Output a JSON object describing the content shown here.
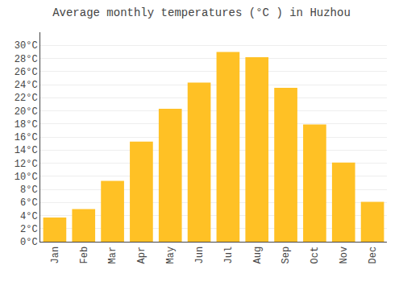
{
  "chart_data": {
    "type": "bar",
    "title": "Average monthly temperatures (°C ) in Huzhou",
    "categories": [
      "Jan",
      "Feb",
      "Mar",
      "Apr",
      "May",
      "Jun",
      "Jul",
      "Aug",
      "Sep",
      "Oct",
      "Nov",
      "Dec"
    ],
    "values": [
      3.7,
      5.0,
      9.3,
      15.3,
      20.3,
      24.3,
      29.0,
      28.2,
      23.5,
      17.9,
      12.1,
      6.1
    ],
    "color": "#FFC125",
    "ylim": [
      0,
      32
    ],
    "yticks": [
      {
        "value": 0,
        "label": "0°C"
      },
      {
        "value": 2,
        "label": "2°C"
      },
      {
        "value": 4,
        "label": "4°C"
      },
      {
        "value": 6,
        "label": "6°C"
      },
      {
        "value": 8,
        "label": "8°C"
      },
      {
        "value": 10,
        "label": "10°C"
      },
      {
        "value": 12,
        "label": "12°C"
      },
      {
        "value": 14,
        "label": "14°C"
      },
      {
        "value": 16,
        "label": "16°C"
      },
      {
        "value": 18,
        "label": "18°C"
      },
      {
        "value": 20,
        "label": "20°C"
      },
      {
        "value": 22,
        "label": "22°C"
      },
      {
        "value": 24,
        "label": "24°C"
      },
      {
        "value": 26,
        "label": "26°C"
      },
      {
        "value": 28,
        "label": "28°C"
      },
      {
        "value": 30,
        "label": "30°C"
      }
    ],
    "grid": true
  }
}
